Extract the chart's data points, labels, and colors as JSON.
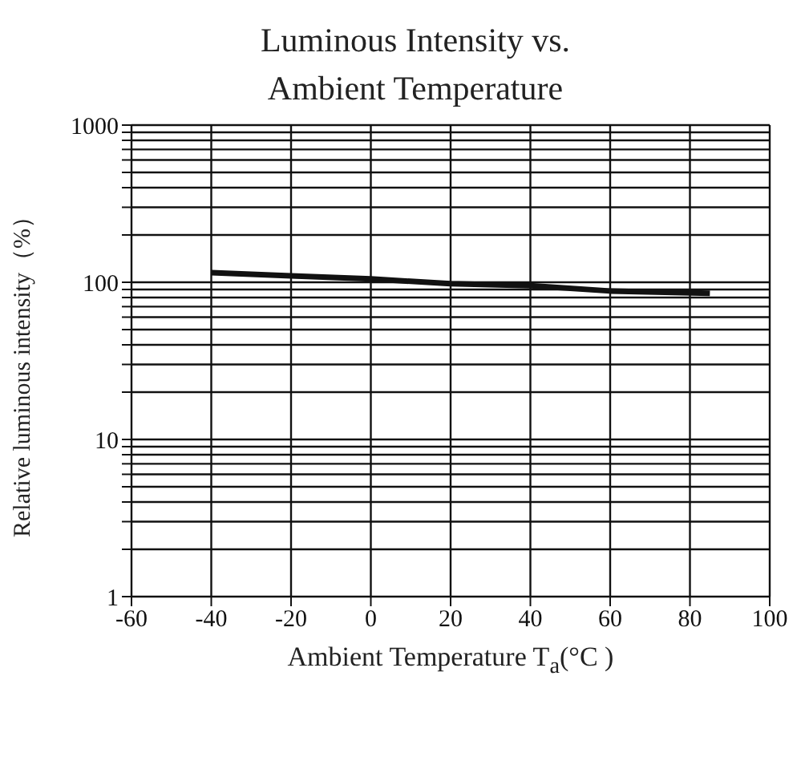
{
  "chart_data": {
    "type": "line",
    "title": "Luminous Intensity vs. Ambient Temperature",
    "xlabel": "Ambient Temperature T$_{a}$(°C )",
    "ylabel": "Relative luminous intensity（%）",
    "x": [
      -40,
      -20,
      0,
      20,
      40,
      60,
      85
    ],
    "series": [
      {
        "color": "#111111",
        "values": [
          115,
          110,
          105,
          98,
          95,
          88,
          85
        ]
      }
    ],
    "xlim": [
      -60,
      100
    ],
    "xticks": [
      -60,
      -40,
      -20,
      0,
      20,
      40,
      60,
      80,
      100
    ],
    "ylim": [
      1,
      1000
    ],
    "yticks": [
      1,
      {
        "value": 2,
        "label": null
      },
      {
        "value": 3,
        "label": null
      },
      {
        "value": 4,
        "label": null
      },
      {
        "value": 5,
        "label": null
      },
      {
        "value": 6,
        "label": null
      },
      {
        "value": 7,
        "label": null
      },
      {
        "value": 8,
        "label": null
      },
      {
        "value": 9,
        "label": null
      },
      10,
      {
        "value": 20,
        "label": null
      },
      {
        "value": 30,
        "label": null
      },
      {
        "value": 40,
        "label": null
      },
      {
        "value": 50,
        "label": null
      },
      {
        "value": 60,
        "label": null
      },
      {
        "value": 70,
        "label": null
      },
      {
        "value": 80,
        "label": null
      },
      {
        "value": 90,
        "label": null
      },
      100,
      {
        "value": 200,
        "label": null
      },
      {
        "value": 300,
        "label": null
      },
      {
        "value": 400,
        "label": null
      },
      {
        "value": 500,
        "label": null
      },
      {
        "value": 600,
        "label": null
      },
      {
        "value": 700,
        "label": null
      },
      {
        "value": 800,
        "label": null
      },
      {
        "value": 900,
        "label": null
      },
      1000
    ],
    "log": true,
    "grid": true,
    "marker": "none",
    "line_style": "solid",
    "legend": false
  }
}
